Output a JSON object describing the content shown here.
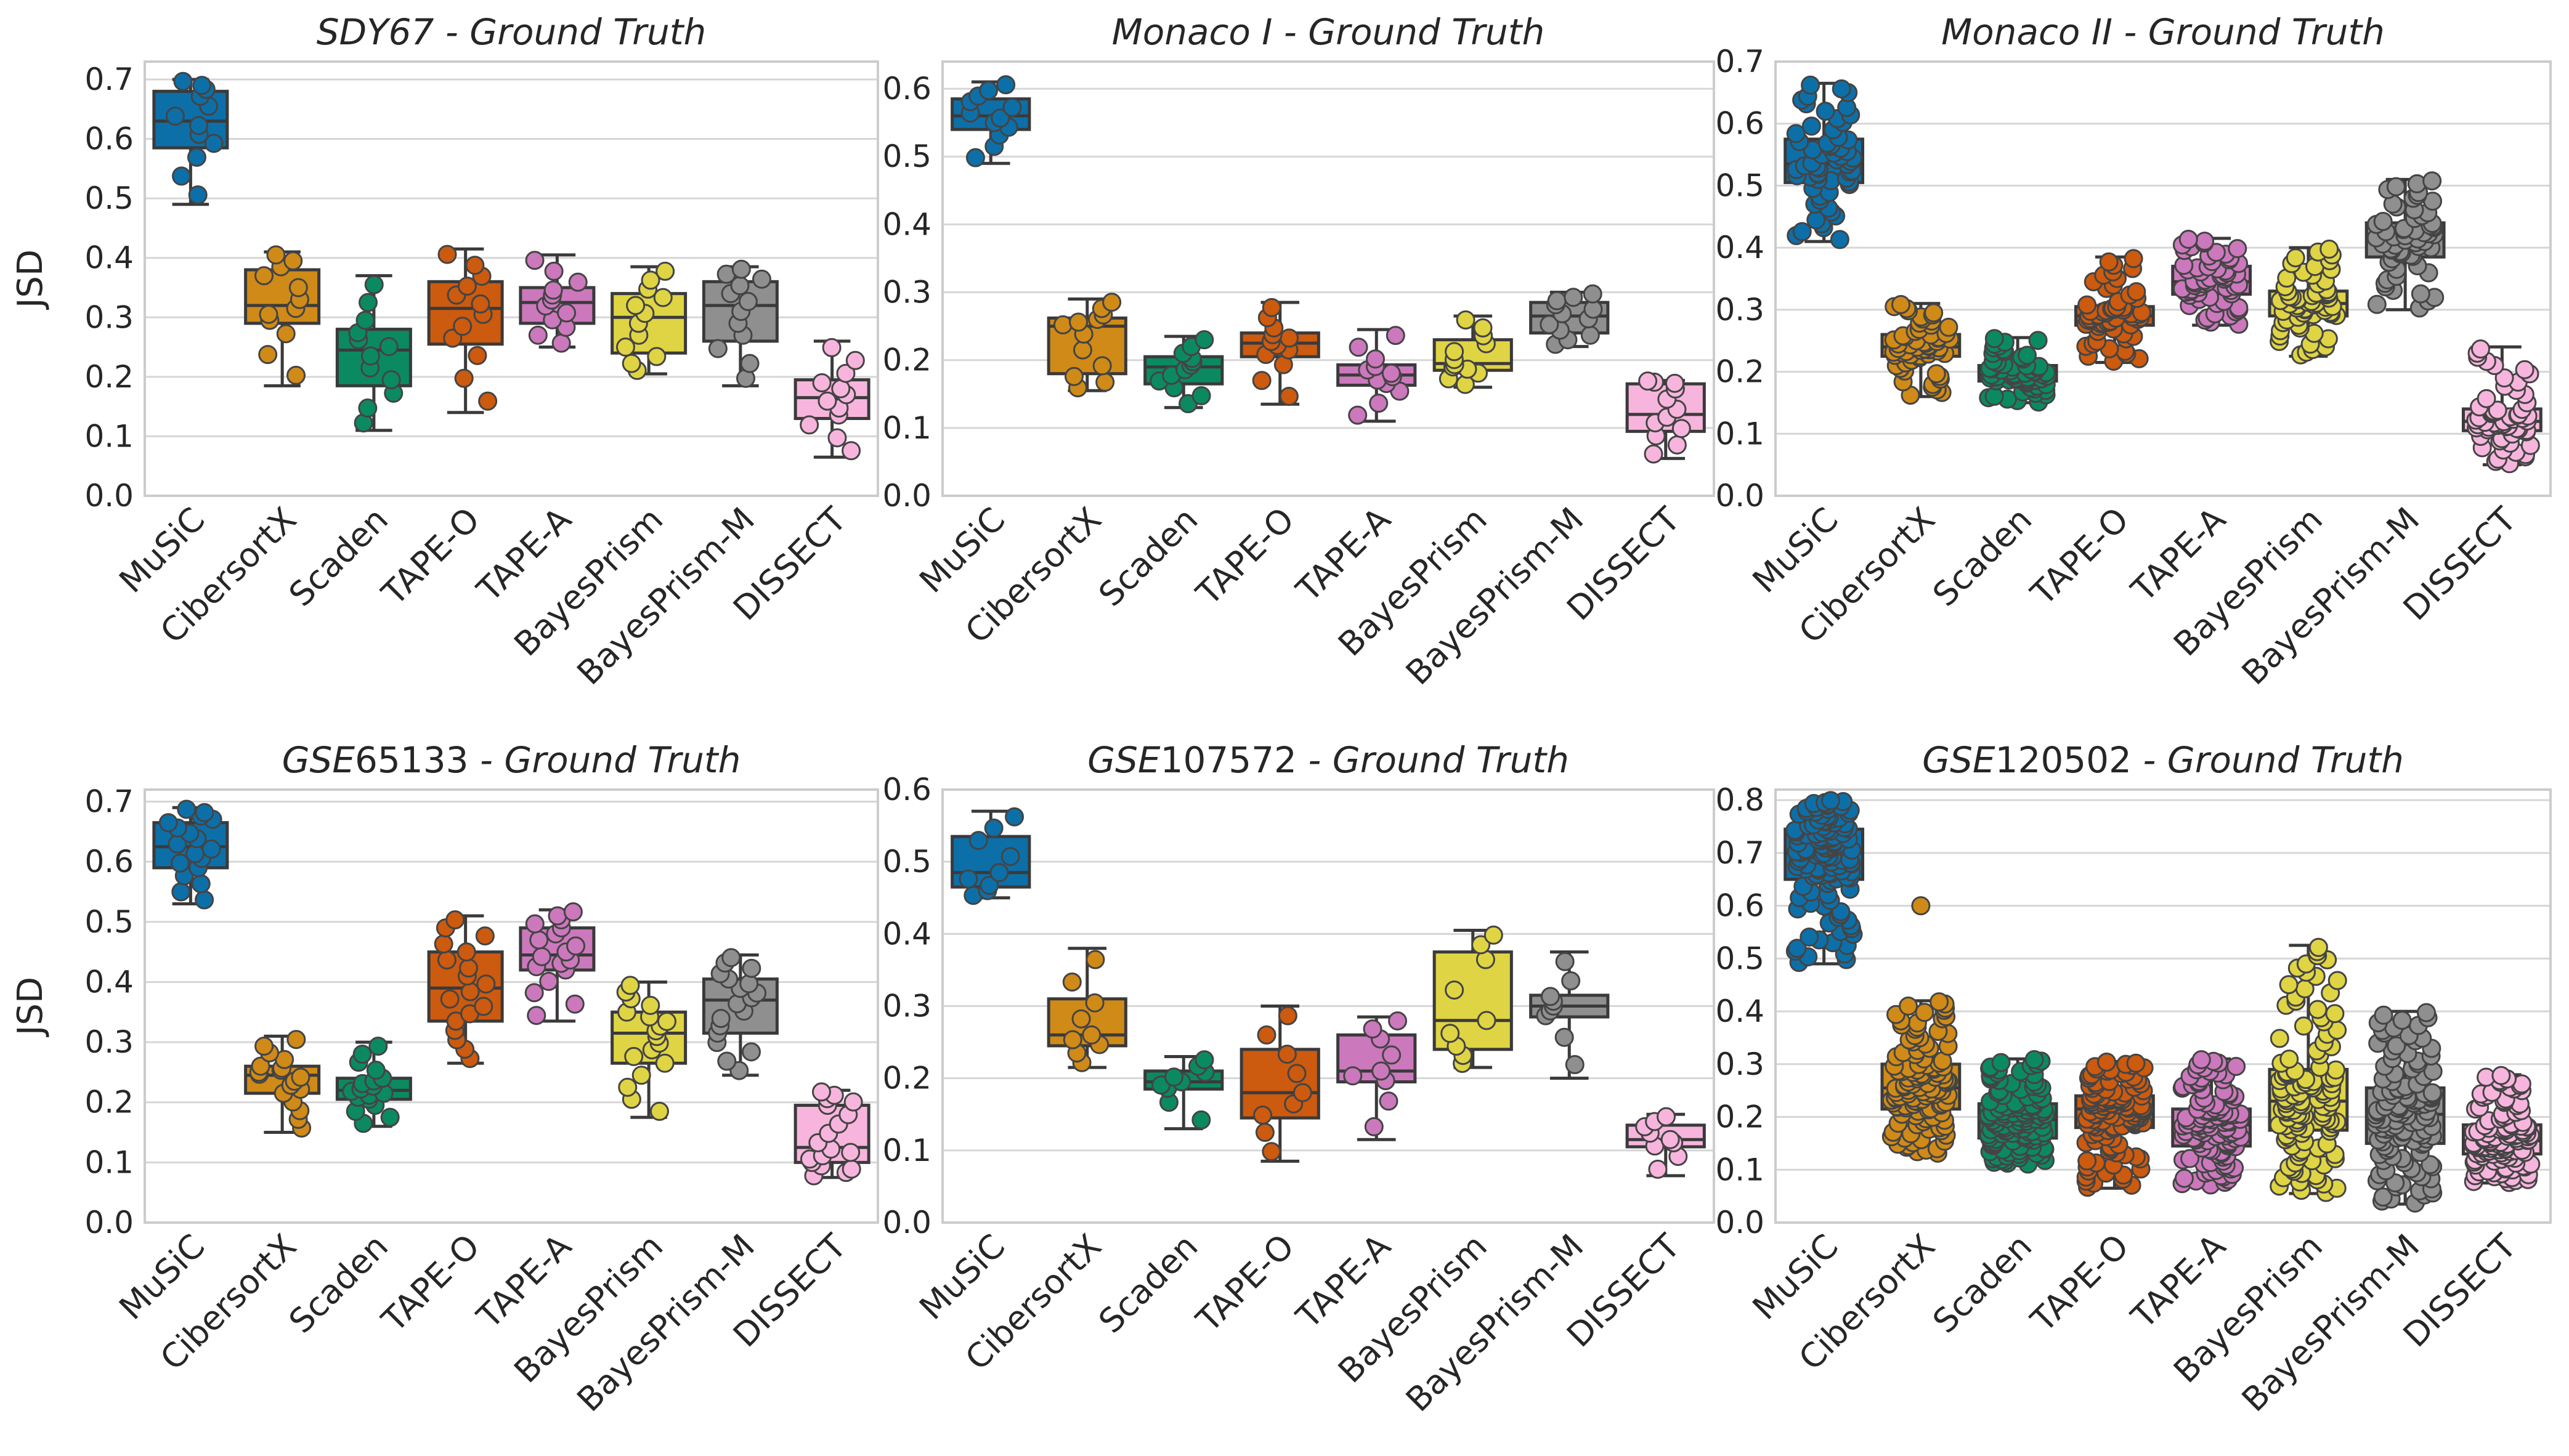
{
  "figure": {
    "y_axis_label": "JSD"
  },
  "colors": {
    "MuSiC": "#0d6fa8",
    "CibersortX": "#d08a17",
    "Scaden": "#0b8a62",
    "TAPE-O": "#cc5a0f",
    "TAPE-A": "#cc78bd",
    "BayesPrism": "#dfd444",
    "BayesPrism-M": "#8f8f8f",
    "DISSECT": "#f7b5dd",
    "grid": "#d6d6d6",
    "frame": "#cccccc",
    "box_edge": "#3a3a3a"
  },
  "chart_data": [
    {
      "type": "box",
      "title_prefix": "SDY67",
      "title_suffix": " - Ground Truth",
      "title_prefix_italic": true,
      "ylabel": "JSD",
      "ylim": [
        0,
        0.73
      ],
      "yticks": [
        "0.0",
        "0.1",
        "0.2",
        "0.3",
        "0.4",
        "0.5",
        "0.6",
        "0.7"
      ],
      "n_points": 12,
      "categories": [
        "MuSiC",
        "CibersortX",
        "Scaden",
        "TAPE-O",
        "TAPE-A",
        "BayesPrism",
        "BayesPrism-M",
        "DISSECT"
      ],
      "boxes": [
        {
          "whislo": 0.49,
          "q1": 0.585,
          "med": 0.63,
          "q3": 0.68,
          "whishi": 0.7
        },
        {
          "whislo": 0.185,
          "q1": 0.29,
          "med": 0.32,
          "q3": 0.38,
          "whishi": 0.41
        },
        {
          "whislo": 0.11,
          "q1": 0.185,
          "med": 0.245,
          "q3": 0.28,
          "whishi": 0.37
        },
        {
          "whislo": 0.14,
          "q1": 0.255,
          "med": 0.315,
          "q3": 0.36,
          "whishi": 0.415
        },
        {
          "whislo": 0.25,
          "q1": 0.29,
          "med": 0.325,
          "q3": 0.35,
          "whishi": 0.405
        },
        {
          "whislo": 0.205,
          "q1": 0.24,
          "med": 0.3,
          "q3": 0.34,
          "whishi": 0.385
        },
        {
          "whislo": 0.185,
          "q1": 0.26,
          "med": 0.32,
          "q3": 0.36,
          "whishi": 0.385
        },
        {
          "whislo": 0.065,
          "q1": 0.13,
          "med": 0.165,
          "q3": 0.195,
          "whishi": 0.26
        }
      ]
    },
    {
      "type": "box",
      "title_prefix": "Monaco I",
      "title_suffix": " - Ground Truth",
      "title_prefix_italic": true,
      "ylabel": "",
      "ylim": [
        0,
        0.64
      ],
      "yticks": [
        "0.0",
        "0.1",
        "0.2",
        "0.3",
        "0.4",
        "0.5",
        "0.6"
      ],
      "n_points": 12,
      "categories": [
        "MuSiC",
        "CibersortX",
        "Scaden",
        "TAPE-O",
        "TAPE-A",
        "BayesPrism",
        "BayesPrism-M",
        "DISSECT"
      ],
      "boxes": [
        {
          "whislo": 0.49,
          "q1": 0.54,
          "med": 0.56,
          "q3": 0.585,
          "whishi": 0.61
        },
        {
          "whislo": 0.155,
          "q1": 0.18,
          "med": 0.25,
          "q3": 0.262,
          "whishi": 0.29
        },
        {
          "whislo": 0.13,
          "q1": 0.165,
          "med": 0.19,
          "q3": 0.205,
          "whishi": 0.235
        },
        {
          "whislo": 0.135,
          "q1": 0.205,
          "med": 0.225,
          "q3": 0.24,
          "whishi": 0.285
        },
        {
          "whislo": 0.11,
          "q1": 0.163,
          "med": 0.178,
          "q3": 0.193,
          "whishi": 0.245
        },
        {
          "whislo": 0.16,
          "q1": 0.185,
          "med": 0.195,
          "q3": 0.23,
          "whishi": 0.265
        },
        {
          "whislo": 0.22,
          "q1": 0.24,
          "med": 0.265,
          "q3": 0.285,
          "whishi": 0.3
        },
        {
          "whislo": 0.055,
          "q1": 0.095,
          "med": 0.12,
          "q3": 0.165,
          "whishi": 0.17
        }
      ]
    },
    {
      "type": "box",
      "title_prefix": "Monaco II",
      "title_suffix": " - Ground Truth",
      "title_prefix_italic": true,
      "ylabel": "",
      "ylim": [
        0,
        0.7
      ],
      "yticks": [
        "0.0",
        "0.1",
        "0.2",
        "0.3",
        "0.4",
        "0.5",
        "0.6",
        "0.7"
      ],
      "n_points": 60,
      "categories": [
        "MuSiC",
        "CibersortX",
        "Scaden",
        "TAPE-O",
        "TAPE-A",
        "BayesPrism",
        "BayesPrism-M",
        "DISSECT"
      ],
      "boxes": [
        {
          "whislo": 0.41,
          "q1": 0.505,
          "med": 0.535,
          "q3": 0.575,
          "whishi": 0.665
        },
        {
          "whislo": 0.16,
          "q1": 0.225,
          "med": 0.24,
          "q3": 0.26,
          "whishi": 0.31
        },
        {
          "whislo": 0.15,
          "q1": 0.185,
          "med": 0.195,
          "q3": 0.21,
          "whishi": 0.255
        },
        {
          "whislo": 0.215,
          "q1": 0.275,
          "med": 0.29,
          "q3": 0.305,
          "whishi": 0.385
        },
        {
          "whislo": 0.275,
          "q1": 0.325,
          "med": 0.345,
          "q3": 0.37,
          "whishi": 0.415
        },
        {
          "whislo": 0.225,
          "q1": 0.29,
          "med": 0.31,
          "q3": 0.33,
          "whishi": 0.4
        },
        {
          "whislo": 0.3,
          "q1": 0.385,
          "med": 0.415,
          "q3": 0.44,
          "whishi": 0.51
        },
        {
          "whislo": 0.05,
          "q1": 0.105,
          "med": 0.12,
          "q3": 0.14,
          "whishi": 0.24
        }
      ]
    },
    {
      "type": "box",
      "title_prefix": "GSE",
      "title_suffix": "65133 - Ground Truth",
      "title_prefix_italic": true,
      "ylabel": "JSD",
      "ylim": [
        0,
        0.72
      ],
      "yticks": [
        "0.0",
        "0.1",
        "0.2",
        "0.3",
        "0.4",
        "0.5",
        "0.6",
        "0.7"
      ],
      "n_points": 18,
      "categories": [
        "MuSiC",
        "CibersortX",
        "Scaden",
        "TAPE-O",
        "TAPE-A",
        "BayesPrism",
        "BayesPrism-M",
        "DISSECT"
      ],
      "boxes": [
        {
          "whislo": 0.53,
          "q1": 0.59,
          "med": 0.625,
          "q3": 0.665,
          "whishi": 0.69
        },
        {
          "whislo": 0.15,
          "q1": 0.215,
          "med": 0.245,
          "q3": 0.26,
          "whishi": 0.31
        },
        {
          "whislo": 0.16,
          "q1": 0.205,
          "med": 0.22,
          "q3": 0.24,
          "whishi": 0.3
        },
        {
          "whislo": 0.265,
          "q1": 0.335,
          "med": 0.39,
          "q3": 0.45,
          "whishi": 0.51
        },
        {
          "whislo": 0.335,
          "q1": 0.42,
          "med": 0.445,
          "q3": 0.49,
          "whishi": 0.52
        },
        {
          "whislo": 0.175,
          "q1": 0.265,
          "med": 0.315,
          "q3": 0.35,
          "whishi": 0.4
        },
        {
          "whislo": 0.245,
          "q1": 0.315,
          "med": 0.37,
          "q3": 0.405,
          "whishi": 0.445
        },
        {
          "whislo": 0.075,
          "q1": 0.1,
          "med": 0.125,
          "q3": 0.195,
          "whishi": 0.22
        }
      ]
    },
    {
      "type": "box",
      "title_prefix": "GSE",
      "title_suffix": "107572 - Ground Truth",
      "title_prefix_italic": true,
      "ylabel": "",
      "ylim": [
        0,
        0.6
      ],
      "yticks": [
        "0.0",
        "0.1",
        "0.2",
        "0.3",
        "0.4",
        "0.5",
        "0.6"
      ],
      "n_points": 9,
      "categories": [
        "MuSiC",
        "CibersortX",
        "Scaden",
        "TAPE-O",
        "TAPE-A",
        "BayesPrism",
        "BayesPrism-M",
        "DISSECT"
      ],
      "boxes": [
        {
          "whislo": 0.45,
          "q1": 0.465,
          "med": 0.485,
          "q3": 0.535,
          "whishi": 0.57
        },
        {
          "whislo": 0.215,
          "q1": 0.245,
          "med": 0.26,
          "q3": 0.31,
          "whishi": 0.38
        },
        {
          "whislo": 0.13,
          "q1": 0.185,
          "med": 0.195,
          "q3": 0.21,
          "whishi": 0.23
        },
        {
          "whislo": 0.085,
          "q1": 0.145,
          "med": 0.18,
          "q3": 0.24,
          "whishi": 0.3
        },
        {
          "whislo": 0.115,
          "q1": 0.195,
          "med": 0.21,
          "q3": 0.26,
          "whishi": 0.285
        },
        {
          "whislo": 0.215,
          "q1": 0.24,
          "med": 0.28,
          "q3": 0.375,
          "whishi": 0.405
        },
        {
          "whislo": 0.2,
          "q1": 0.285,
          "med": 0.3,
          "q3": 0.315,
          "whishi": 0.375
        },
        {
          "whislo": 0.065,
          "q1": 0.105,
          "med": 0.115,
          "q3": 0.135,
          "whishi": 0.15
        }
      ]
    },
    {
      "type": "box",
      "title_prefix": "GSE",
      "title_suffix": "120502 - Ground Truth",
      "title_prefix_italic": true,
      "ylabel": "",
      "ylim": [
        0,
        0.82
      ],
      "yticks": [
        "0.0",
        "0.1",
        "0.2",
        "0.3",
        "0.4",
        "0.5",
        "0.6",
        "0.7",
        "0.8"
      ],
      "n_points": 120,
      "categories": [
        "MuSiC",
        "CibersortX",
        "Scaden",
        "TAPE-O",
        "TAPE-A",
        "BayesPrism",
        "BayesPrism-M",
        "DISSECT"
      ],
      "boxes": [
        {
          "whislo": 0.49,
          "q1": 0.65,
          "med": 0.7,
          "q3": 0.745,
          "whishi": 0.8
        },
        {
          "whislo": 0.13,
          "q1": 0.215,
          "med": 0.255,
          "q3": 0.3,
          "whishi": 0.42
        },
        {
          "whislo": 0.11,
          "q1": 0.16,
          "med": 0.195,
          "q3": 0.225,
          "whishi": 0.31
        },
        {
          "whislo": 0.065,
          "q1": 0.18,
          "med": 0.215,
          "q3": 0.24,
          "whishi": 0.305
        },
        {
          "whislo": 0.07,
          "q1": 0.145,
          "med": 0.185,
          "q3": 0.215,
          "whishi": 0.31
        },
        {
          "whislo": 0.055,
          "q1": 0.175,
          "med": 0.23,
          "q3": 0.29,
          "whishi": 0.525
        },
        {
          "whislo": 0.035,
          "q1": 0.15,
          "med": 0.205,
          "q3": 0.255,
          "whishi": 0.4
        },
        {
          "whislo": 0.075,
          "q1": 0.13,
          "med": 0.155,
          "q3": 0.185,
          "whishi": 0.28
        }
      ],
      "outliers": [
        {
          "category": "CibersortX",
          "values": [
            0.6
          ]
        }
      ]
    }
  ]
}
